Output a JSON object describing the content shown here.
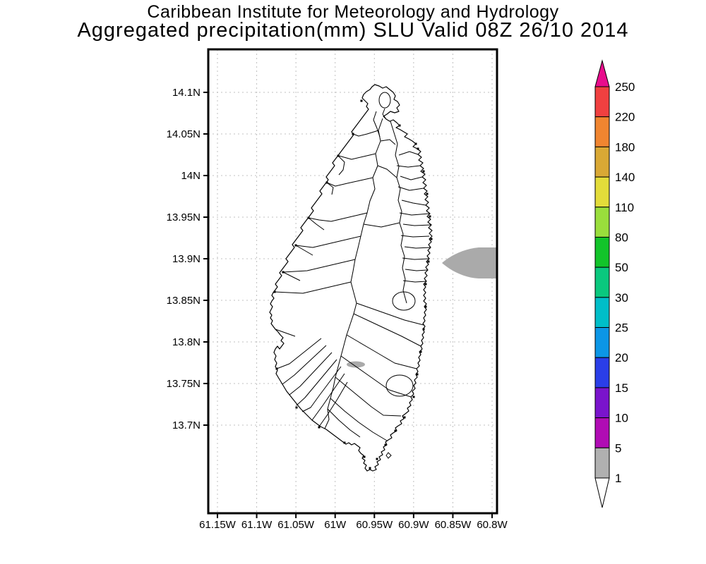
{
  "title": {
    "line1": "Caribbean Institute for Meteorology and Hydrology",
    "line2": "Aggregated precipitation(mm) SLU Valid 08Z 26/10 2014"
  },
  "axes": {
    "lat_tick_labels": [
      "14.1N",
      "14.05N",
      "14N",
      "13.95N",
      "13.9N",
      "13.85N",
      "13.8N",
      "13.75N",
      "13.7N"
    ],
    "lon_tick_labels": [
      "61.15W",
      "61.1W",
      "61.05W",
      "61W",
      "60.95W",
      "60.9W",
      "60.85W",
      "60.8W"
    ]
  },
  "legend": {
    "labels_top_to_bottom": [
      "250",
      "220",
      "180",
      "140",
      "110",
      "80",
      "50",
      "30",
      "25",
      "20",
      "15",
      "10",
      "5",
      "1"
    ],
    "segment_colors_top_to_bottom": [
      "#f04040",
      "#f08530",
      "#d9a835",
      "#e3dc3a",
      "#9ade3c",
      "#12c42a",
      "#0ac87e",
      "#00bec8",
      "#0c96e6",
      "#2a3ee8",
      "#7a14cc",
      "#b00cb4",
      "#b0b0b0"
    ],
    "arrow_top_color": "#e80c8c",
    "arrow_bottom_color": "#ffffff"
  },
  "shading": {
    "offshore_blob_color": "#aaaaaa",
    "inland_blob_color": "#aaaaaa"
  },
  "colors": {
    "grid": "#c0c0c0",
    "frame": "#000000",
    "background": "#ffffff",
    "coastline": "#000000"
  }
}
